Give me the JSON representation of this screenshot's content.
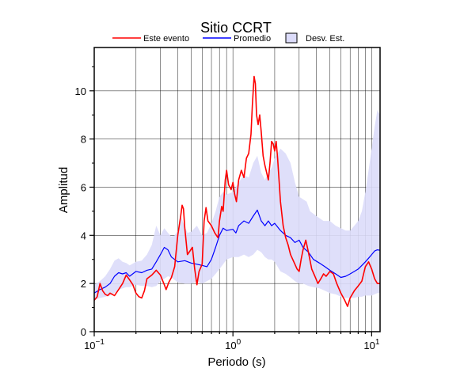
{
  "chart_data": {
    "type": "area",
    "title": "Sitio CCRT",
    "xlabel": "Periodo (s)",
    "ylabel": "Amplitud",
    "x_scale": "log",
    "xlim": [
      0.1,
      11.5
    ],
    "ylim": [
      0,
      11.8
    ],
    "grid": true,
    "legend_position": "top",
    "x_ticks": [
      0.1,
      1,
      10
    ],
    "x_tick_labels": [
      {
        "base": "10",
        "exp": "−1"
      },
      {
        "base": "10",
        "exp": "0"
      },
      {
        "base": "10",
        "exp": "1"
      }
    ],
    "y_ticks": [
      0,
      2,
      4,
      6,
      8,
      10
    ],
    "y_tick_labels": [
      "0",
      "2",
      "4",
      "6",
      "8",
      "10"
    ],
    "series": [
      {
        "name": "Este evento",
        "kind": "line",
        "color": "#ff0000",
        "points": [
          [
            0.1,
            1.3
          ],
          [
            0.105,
            1.45
          ],
          [
            0.11,
            2.0
          ],
          [
            0.115,
            1.7
          ],
          [
            0.12,
            1.55
          ],
          [
            0.125,
            1.5
          ],
          [
            0.13,
            1.6
          ],
          [
            0.14,
            1.5
          ],
          [
            0.15,
            1.75
          ],
          [
            0.16,
            2.0
          ],
          [
            0.17,
            2.35
          ],
          [
            0.18,
            2.15
          ],
          [
            0.19,
            1.95
          ],
          [
            0.2,
            1.6
          ],
          [
            0.21,
            1.45
          ],
          [
            0.22,
            1.4
          ],
          [
            0.23,
            1.7
          ],
          [
            0.24,
            2.2
          ],
          [
            0.26,
            2.35
          ],
          [
            0.28,
            2.55
          ],
          [
            0.3,
            2.35
          ],
          [
            0.32,
            1.95
          ],
          [
            0.33,
            1.75
          ],
          [
            0.345,
            2.05
          ],
          [
            0.36,
            2.25
          ],
          [
            0.38,
            2.7
          ],
          [
            0.4,
            4.0
          ],
          [
            0.42,
            4.8
          ],
          [
            0.43,
            5.25
          ],
          [
            0.44,
            5.1
          ],
          [
            0.45,
            4.3
          ],
          [
            0.47,
            3.2
          ],
          [
            0.49,
            3.35
          ],
          [
            0.51,
            3.5
          ],
          [
            0.53,
            2.6
          ],
          [
            0.55,
            1.95
          ],
          [
            0.57,
            2.5
          ],
          [
            0.6,
            2.8
          ],
          [
            0.62,
            4.6
          ],
          [
            0.64,
            5.15
          ],
          [
            0.66,
            4.6
          ],
          [
            0.7,
            4.4
          ],
          [
            0.74,
            4.1
          ],
          [
            0.78,
            3.9
          ],
          [
            0.8,
            4.6
          ],
          [
            0.83,
            5.2
          ],
          [
            0.85,
            5.0
          ],
          [
            0.88,
            6.3
          ],
          [
            0.9,
            6.7
          ],
          [
            0.93,
            6.1
          ],
          [
            0.97,
            5.9
          ],
          [
            1.0,
            6.2
          ],
          [
            1.03,
            5.7
          ],
          [
            1.06,
            5.4
          ],
          [
            1.1,
            6.3
          ],
          [
            1.15,
            6.7
          ],
          [
            1.2,
            6.4
          ],
          [
            1.25,
            7.2
          ],
          [
            1.3,
            7.4
          ],
          [
            1.35,
            8.2
          ],
          [
            1.38,
            9.4
          ],
          [
            1.42,
            10.6
          ],
          [
            1.45,
            10.3
          ],
          [
            1.48,
            9.0
          ],
          [
            1.52,
            8.6
          ],
          [
            1.56,
            9.0
          ],
          [
            1.6,
            8.3
          ],
          [
            1.65,
            7.3
          ],
          [
            1.7,
            6.9
          ],
          [
            1.75,
            6.6
          ],
          [
            1.8,
            6.3
          ],
          [
            1.85,
            7.0
          ],
          [
            1.9,
            7.9
          ],
          [
            1.95,
            7.8
          ],
          [
            2.0,
            7.5
          ],
          [
            2.05,
            7.9
          ],
          [
            2.1,
            7.2
          ],
          [
            2.2,
            5.4
          ],
          [
            2.3,
            4.4
          ],
          [
            2.4,
            3.9
          ],
          [
            2.5,
            3.6
          ],
          [
            2.6,
            3.2
          ],
          [
            2.75,
            2.9
          ],
          [
            2.9,
            2.6
          ],
          [
            3.0,
            2.5
          ],
          [
            3.1,
            3.0
          ],
          [
            3.2,
            3.4
          ],
          [
            3.35,
            3.8
          ],
          [
            3.5,
            3.3
          ],
          [
            3.7,
            2.6
          ],
          [
            3.9,
            2.3
          ],
          [
            4.1,
            2.0
          ],
          [
            4.3,
            2.2
          ],
          [
            4.5,
            2.4
          ],
          [
            4.7,
            2.3
          ],
          [
            5.0,
            2.5
          ],
          [
            5.3,
            2.4
          ],
          [
            5.6,
            2.0
          ],
          [
            6.0,
            1.6
          ],
          [
            6.4,
            1.3
          ],
          [
            6.7,
            1.05
          ],
          [
            7.0,
            1.4
          ],
          [
            7.5,
            1.7
          ],
          [
            8.0,
            1.9
          ],
          [
            8.5,
            2.1
          ],
          [
            9.0,
            2.7
          ],
          [
            9.5,
            2.9
          ],
          [
            10.0,
            2.6
          ],
          [
            10.5,
            2.2
          ],
          [
            11.0,
            2.0
          ],
          [
            11.5,
            2.0
          ]
        ]
      },
      {
        "name": "Promedio",
        "kind": "line",
        "color": "#0000ff",
        "points": [
          [
            0.1,
            1.6
          ],
          [
            0.11,
            1.75
          ],
          [
            0.12,
            1.85
          ],
          [
            0.13,
            2.0
          ],
          [
            0.14,
            2.3
          ],
          [
            0.15,
            2.45
          ],
          [
            0.16,
            2.4
          ],
          [
            0.17,
            2.45
          ],
          [
            0.18,
            2.3
          ],
          [
            0.2,
            2.5
          ],
          [
            0.22,
            2.45
          ],
          [
            0.24,
            2.55
          ],
          [
            0.26,
            2.6
          ],
          [
            0.28,
            2.9
          ],
          [
            0.3,
            3.2
          ],
          [
            0.32,
            3.5
          ],
          [
            0.34,
            3.4
          ],
          [
            0.36,
            3.1
          ],
          [
            0.4,
            2.9
          ],
          [
            0.45,
            2.95
          ],
          [
            0.5,
            2.85
          ],
          [
            0.55,
            2.8
          ],
          [
            0.6,
            2.75
          ],
          [
            0.65,
            2.7
          ],
          [
            0.7,
            3.0
          ],
          [
            0.75,
            3.5
          ],
          [
            0.8,
            4.0
          ],
          [
            0.85,
            4.3
          ],
          [
            0.9,
            4.2
          ],
          [
            1.0,
            4.25
          ],
          [
            1.05,
            4.1
          ],
          [
            1.1,
            4.4
          ],
          [
            1.2,
            4.6
          ],
          [
            1.3,
            4.5
          ],
          [
            1.4,
            4.8
          ],
          [
            1.5,
            5.05
          ],
          [
            1.6,
            4.6
          ],
          [
            1.7,
            4.4
          ],
          [
            1.8,
            4.6
          ],
          [
            1.9,
            4.4
          ],
          [
            2.0,
            4.5
          ],
          [
            2.2,
            4.2
          ],
          [
            2.4,
            4.0
          ],
          [
            2.6,
            3.9
          ],
          [
            2.8,
            3.7
          ],
          [
            3.0,
            3.8
          ],
          [
            3.2,
            3.5
          ],
          [
            3.5,
            3.3
          ],
          [
            3.8,
            3.0
          ],
          [
            4.2,
            2.85
          ],
          [
            4.6,
            2.7
          ],
          [
            5.0,
            2.55
          ],
          [
            5.5,
            2.4
          ],
          [
            6.0,
            2.25
          ],
          [
            6.5,
            2.3
          ],
          [
            7.0,
            2.4
          ],
          [
            7.5,
            2.5
          ],
          [
            8.0,
            2.6
          ],
          [
            8.5,
            2.75
          ],
          [
            9.0,
            2.9
          ],
          [
            9.5,
            3.05
          ],
          [
            10.0,
            3.2
          ],
          [
            10.5,
            3.35
          ],
          [
            11.0,
            3.4
          ],
          [
            11.5,
            3.38
          ]
        ]
      },
      {
        "name": "Desv. Est.",
        "kind": "band",
        "color": "#dcdcfa",
        "edge_color": "#000000",
        "points_upper": [
          [
            0.1,
            1.95
          ],
          [
            0.11,
            2.1
          ],
          [
            0.12,
            2.3
          ],
          [
            0.13,
            2.6
          ],
          [
            0.14,
            2.95
          ],
          [
            0.15,
            3.05
          ],
          [
            0.16,
            2.9
          ],
          [
            0.17,
            2.85
          ],
          [
            0.18,
            2.75
          ],
          [
            0.2,
            2.9
          ],
          [
            0.22,
            2.95
          ],
          [
            0.24,
            3.2
          ],
          [
            0.26,
            3.6
          ],
          [
            0.28,
            4.4
          ],
          [
            0.3,
            4.0
          ],
          [
            0.32,
            4.3
          ],
          [
            0.34,
            4.1
          ],
          [
            0.36,
            3.95
          ],
          [
            0.38,
            4.0
          ],
          [
            0.4,
            4.2
          ],
          [
            0.42,
            4.8
          ],
          [
            0.44,
            4.5
          ],
          [
            0.47,
            4.1
          ],
          [
            0.5,
            4.15
          ],
          [
            0.55,
            4.4
          ],
          [
            0.6,
            4.0
          ],
          [
            0.65,
            4.1
          ],
          [
            0.7,
            4.5
          ],
          [
            0.75,
            5.0
          ],
          [
            0.8,
            5.6
          ],
          [
            0.85,
            5.8
          ],
          [
            0.9,
            5.7
          ],
          [
            1.0,
            5.8
          ],
          [
            1.1,
            6.2
          ],
          [
            1.2,
            6.5
          ],
          [
            1.3,
            6.4
          ],
          [
            1.4,
            7.0
          ],
          [
            1.5,
            7.3
          ],
          [
            1.6,
            6.6
          ],
          [
            1.7,
            6.3
          ],
          [
            1.8,
            6.6
          ],
          [
            1.9,
            6.8
          ],
          [
            2.0,
            7.2
          ],
          [
            2.2,
            7.6
          ],
          [
            2.4,
            7.4
          ],
          [
            2.6,
            7.0
          ],
          [
            2.8,
            6.2
          ],
          [
            3.0,
            5.6
          ],
          [
            3.2,
            5.5
          ],
          [
            3.4,
            5.4
          ],
          [
            3.6,
            5.0
          ],
          [
            4.0,
            4.8
          ],
          [
            4.5,
            4.6
          ],
          [
            5.0,
            4.6
          ],
          [
            5.5,
            4.4
          ],
          [
            6.0,
            4.3
          ],
          [
            6.5,
            4.2
          ],
          [
            7.0,
            4.2
          ],
          [
            7.5,
            4.4
          ],
          [
            8.0,
            4.6
          ],
          [
            8.5,
            5.0
          ],
          [
            9.0,
            5.8
          ],
          [
            9.5,
            6.7
          ],
          [
            10.0,
            7.6
          ],
          [
            10.5,
            8.5
          ],
          [
            11.0,
            9.2
          ],
          [
            11.5,
            9.0
          ]
        ],
        "points_lower": [
          [
            0.1,
            1.3
          ],
          [
            0.11,
            1.4
          ],
          [
            0.12,
            1.45
          ],
          [
            0.13,
            1.5
          ],
          [
            0.14,
            1.6
          ],
          [
            0.15,
            1.75
          ],
          [
            0.16,
            1.8
          ],
          [
            0.17,
            1.85
          ],
          [
            0.18,
            1.85
          ],
          [
            0.2,
            1.95
          ],
          [
            0.22,
            1.9
          ],
          [
            0.24,
            1.9
          ],
          [
            0.26,
            1.85
          ],
          [
            0.28,
            1.9
          ],
          [
            0.3,
            2.1
          ],
          [
            0.32,
            2.2
          ],
          [
            0.34,
            2.3
          ],
          [
            0.36,
            2.25
          ],
          [
            0.4,
            2.05
          ],
          [
            0.45,
            2.0
          ],
          [
            0.5,
            2.0
          ],
          [
            0.55,
            2.1
          ],
          [
            0.6,
            2.0
          ],
          [
            0.65,
            2.1
          ],
          [
            0.7,
            2.2
          ],
          [
            0.75,
            2.4
          ],
          [
            0.8,
            2.6
          ],
          [
            0.85,
            2.8
          ],
          [
            0.9,
            3.0
          ],
          [
            1.0,
            3.1
          ],
          [
            1.1,
            3.1
          ],
          [
            1.2,
            3.2
          ],
          [
            1.3,
            3.1
          ],
          [
            1.4,
            3.2
          ],
          [
            1.5,
            3.4
          ],
          [
            1.6,
            3.3
          ],
          [
            1.7,
            3.1
          ],
          [
            1.8,
            3.0
          ],
          [
            1.9,
            3.0
          ],
          [
            2.0,
            2.9
          ],
          [
            2.2,
            2.5
          ],
          [
            2.4,
            2.4
          ],
          [
            2.6,
            2.25
          ],
          [
            2.8,
            2.1
          ],
          [
            3.0,
            2.0
          ],
          [
            3.2,
            2.0
          ],
          [
            3.5,
            1.9
          ],
          [
            3.8,
            1.85
          ],
          [
            4.2,
            1.8
          ],
          [
            4.6,
            1.7
          ],
          [
            5.0,
            1.6
          ],
          [
            5.5,
            1.55
          ],
          [
            6.0,
            1.45
          ],
          [
            6.5,
            1.4
          ],
          [
            7.0,
            1.4
          ],
          [
            7.5,
            1.4
          ],
          [
            8.0,
            1.45
          ],
          [
            8.5,
            1.45
          ],
          [
            9.0,
            1.5
          ],
          [
            9.5,
            1.5
          ],
          [
            10.0,
            1.5
          ],
          [
            10.5,
            1.55
          ],
          [
            11.0,
            1.6
          ],
          [
            11.5,
            1.62
          ]
        ]
      }
    ]
  }
}
